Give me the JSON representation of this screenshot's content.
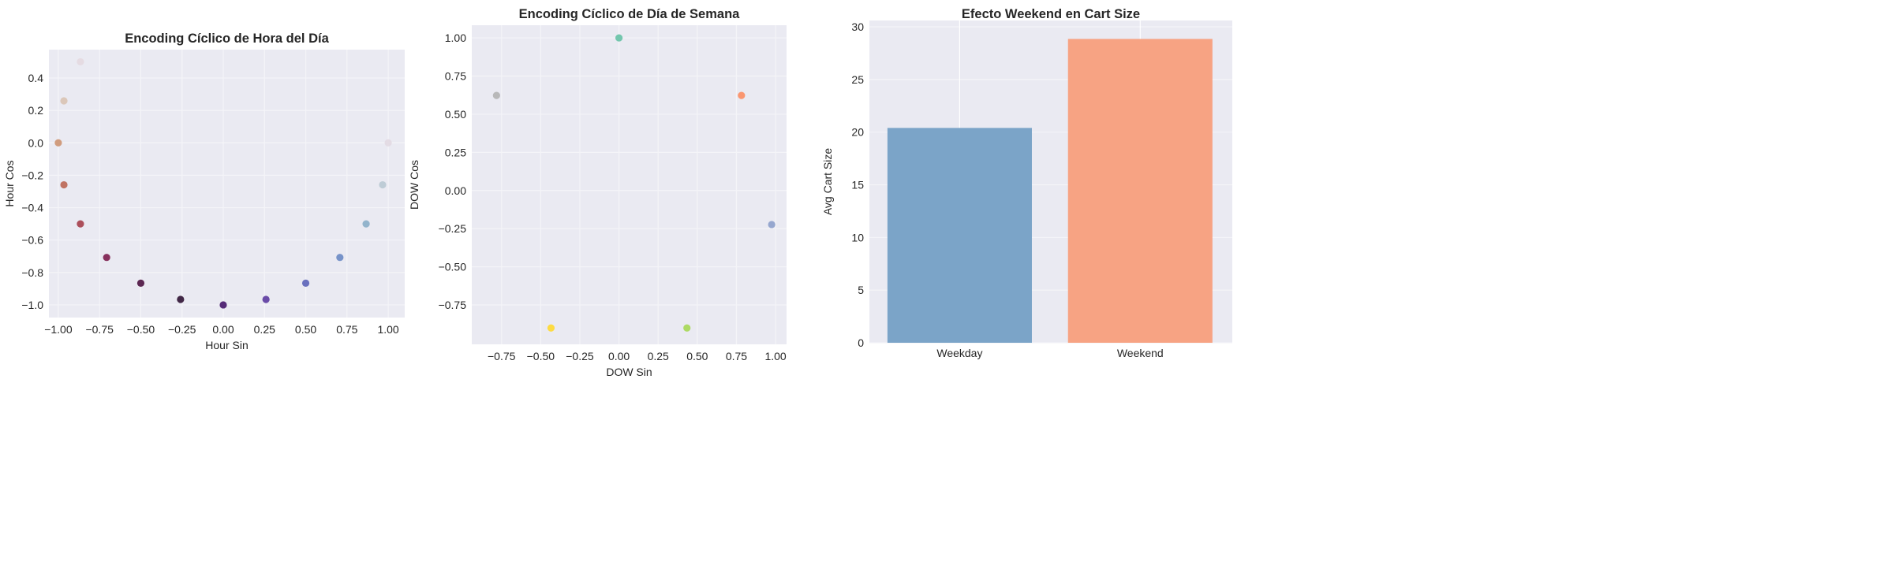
{
  "chart_data": [
    {
      "type": "scatter",
      "title": "Encoding Cíclico de Hora del Día",
      "xlabel": "Hour Sin",
      "ylabel": "Hour Cos",
      "xlim": [
        -1.057,
        1.1
      ],
      "ylim": [
        -1.078,
        0.575
      ],
      "xticks": [
        -1.0,
        -0.75,
        -0.5,
        -0.25,
        0.0,
        0.25,
        0.5,
        0.75,
        1.0
      ],
      "xtick_labels": [
        "−1.00",
        "−0.75",
        "−0.50",
        "−0.25",
        "0.00",
        "0.25",
        "0.50",
        "0.75",
        "1.00"
      ],
      "yticks": [
        -1.0,
        -0.8,
        -0.6,
        -0.4,
        -0.2,
        0.0,
        0.2,
        0.4
      ],
      "ytick_labels": [
        "−1.0",
        "−0.8",
        "−0.6",
        "−0.4",
        "−0.2",
        "0.0",
        "0.2",
        "0.4"
      ],
      "grid": true,
      "points": [
        {
          "x": 1.0,
          "y": 0.0,
          "color": "#e2d9e2"
        },
        {
          "x": 0.966,
          "y": -0.259,
          "color": "#b9c9d3"
        },
        {
          "x": 0.866,
          "y": -0.5,
          "color": "#8aaec8"
        },
        {
          "x": 0.707,
          "y": -0.707,
          "color": "#6a89c4"
        },
        {
          "x": 0.5,
          "y": -0.866,
          "color": "#5b63b8"
        },
        {
          "x": 0.259,
          "y": -0.966,
          "color": "#5c3aa0"
        },
        {
          "x": 0.0,
          "y": -1.0,
          "color": "#45166a"
        },
        {
          "x": -0.259,
          "y": -0.966,
          "color": "#2f1233"
        },
        {
          "x": -0.5,
          "y": -0.866,
          "color": "#4c1240"
        },
        {
          "x": -0.707,
          "y": -0.707,
          "color": "#7c1c4c"
        },
        {
          "x": -0.866,
          "y": -0.5,
          "color": "#a53e4a"
        },
        {
          "x": -0.966,
          "y": -0.259,
          "color": "#bb6653"
        },
        {
          "x": -1.0,
          "y": 0.0,
          "color": "#cd9371"
        },
        {
          "x": -0.966,
          "y": 0.259,
          "color": "#d9c3b3"
        },
        {
          "x": -0.866,
          "y": 0.5,
          "color": "#e4d9e0"
        }
      ]
    },
    {
      "type": "scatter",
      "title": "Encoding Cíclico de Día de Semana",
      "xlabel": "DOW Sin",
      "ylabel": "DOW Cos",
      "xlim": [
        -0.94,
        1.07
      ],
      "ylim": [
        -1.008,
        1.083
      ],
      "xticks": [
        -0.75,
        -0.5,
        -0.25,
        0.0,
        0.25,
        0.5,
        0.75,
        1.0
      ],
      "xtick_labels": [
        "−0.75",
        "−0.50",
        "−0.25",
        "0.00",
        "0.25",
        "0.50",
        "0.75",
        "1.00"
      ],
      "yticks": [
        -0.75,
        -0.5,
        -0.25,
        0.0,
        0.25,
        0.5,
        0.75,
        1.0
      ],
      "ytick_labels": [
        "−0.75",
        "−0.50",
        "−0.25",
        "0.00",
        "0.25",
        "0.50",
        "0.75",
        "1.00"
      ],
      "grid": true,
      "points": [
        {
          "x": 0.0,
          "y": 1.0,
          "color": "#66c2a5"
        },
        {
          "x": 0.782,
          "y": 0.623,
          "color": "#fc8d62"
        },
        {
          "x": 0.975,
          "y": -0.223,
          "color": "#8da0cb"
        },
        {
          "x": 0.434,
          "y": -0.901,
          "color": "#a6d854"
        },
        {
          "x": -0.434,
          "y": -0.901,
          "color": "#ffd92f"
        },
        {
          "x": -0.782,
          "y": 0.623,
          "color": "#b3b3b3"
        }
      ]
    },
    {
      "type": "bar",
      "title": "Efecto Weekend en Cart Size",
      "xlabel": "",
      "ylabel": "Avg Cart Size",
      "categories": [
        "Weekday",
        "Weekend"
      ],
      "values": [
        20.4,
        28.85
      ],
      "colors": [
        "#77a1c6",
        "#f7a07f"
      ],
      "xlim": [
        -0.5,
        1.51
      ],
      "ylim": [
        0,
        30.6
      ],
      "yticks": [
        0,
        5,
        10,
        15,
        20,
        25,
        30
      ],
      "ytick_labels": [
        "0",
        "5",
        "10",
        "15",
        "20",
        "25",
        "30"
      ],
      "grid": true
    }
  ]
}
